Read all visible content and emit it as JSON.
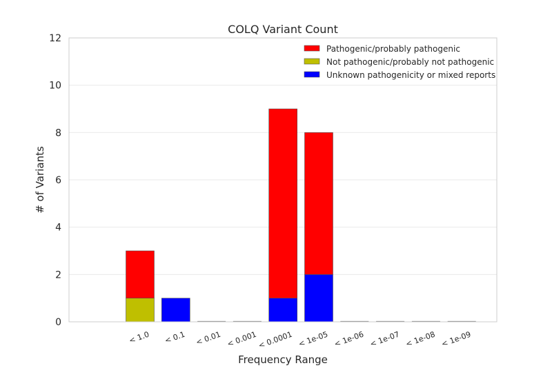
{
  "chart_data": {
    "type": "bar",
    "stacked": true,
    "title": "COLQ Variant Count",
    "xlabel": "Frequency Range",
    "ylabel": "# of Variants",
    "ylim": [
      0,
      12
    ],
    "yticks": [
      0,
      2,
      4,
      6,
      8,
      10,
      12
    ],
    "categories": [
      "< 1.0",
      "< 0.1",
      "< 0.01",
      "< 0.001",
      "< 0.0001",
      "< 1e-05",
      "< 1e-06",
      "< 1e-07",
      "< 1e-08",
      "< 1e-09"
    ],
    "series": [
      {
        "name": "Not pathogenic/probably not pathogenic",
        "color": "#bfbf00",
        "values": [
          1,
          0,
          0,
          0,
          0,
          0,
          0,
          0,
          0,
          0
        ]
      },
      {
        "name": "Unknown pathogenicity or mixed reports",
        "color": "#0000ff",
        "values": [
          0,
          1,
          0,
          0,
          1,
          2,
          0,
          0,
          0,
          0
        ]
      },
      {
        "name": "Pathogenic/probably pathogenic",
        "color": "#ff0000",
        "values": [
          2,
          0,
          0,
          0,
          8,
          6,
          0,
          0,
          0,
          0
        ]
      }
    ],
    "legend": {
      "position": "top-right",
      "order": [
        "Pathogenic/probably pathogenic",
        "Not pathogenic/probably not pathogenic",
        "Unknown pathogenicity or mixed reports"
      ]
    },
    "grid": true
  }
}
